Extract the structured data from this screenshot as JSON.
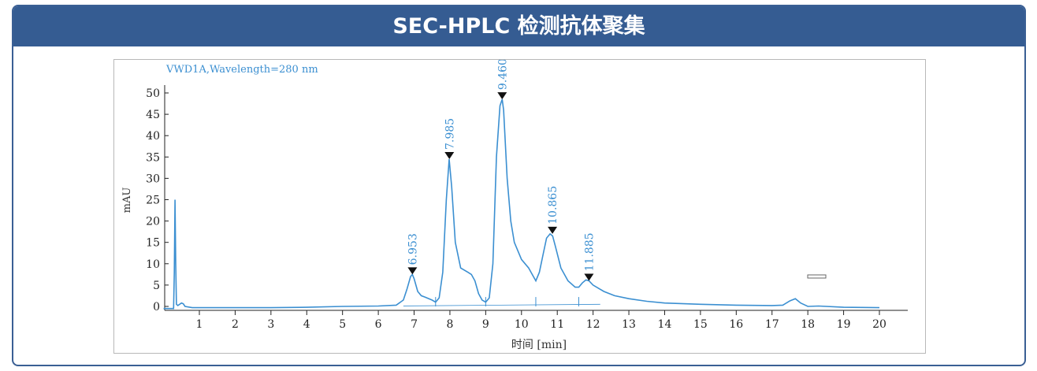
{
  "header": {
    "title": "SEC-HPLC 检测抗体聚集"
  },
  "chart_data": {
    "type": "line",
    "title": "VWD1A,Wavelength=280 nm",
    "xlabel": "时间 [min]",
    "ylabel": "mAU",
    "xlim": [
      0,
      20
    ],
    "ylim": [
      0,
      50
    ],
    "xticks": [
      1,
      2,
      3,
      4,
      5,
      6,
      7,
      8,
      9,
      10,
      11,
      12,
      13,
      14,
      15,
      16,
      17,
      18,
      19,
      20
    ],
    "yticks": [
      0,
      5,
      10,
      15,
      20,
      25,
      30,
      35,
      40,
      45,
      50
    ],
    "peaks": [
      {
        "label": "6.953",
        "x": 6.953,
        "y": 7.5
      },
      {
        "label": "7.985",
        "x": 7.985,
        "y": 34.5
      },
      {
        "label": "9.460",
        "x": 9.46,
        "y": 48.5
      },
      {
        "label": "10.865",
        "x": 10.865,
        "y": 17
      },
      {
        "label": "11.885",
        "x": 11.885,
        "y": 6
      }
    ],
    "integration_baseline_drops": [
      7.6,
      9.0,
      10.4,
      11.6
    ],
    "series": [
      {
        "x": [
          0,
          0.28,
          0.3,
          0.32,
          0.34,
          0.36,
          0.4,
          0.5,
          0.55,
          0.6,
          0.8,
          1,
          2,
          3,
          4,
          5,
          6,
          6.5,
          6.7,
          6.8,
          6.9,
          6.95,
          7,
          7.1,
          7.2,
          7.3,
          7.5,
          7.6,
          7.7,
          7.8,
          7.9,
          7.98,
          8.05,
          8.15,
          8.3,
          8.5,
          8.6,
          8.7,
          8.8,
          8.9,
          9,
          9.1,
          9.2,
          9.3,
          9.4,
          9.46,
          9.5,
          9.6,
          9.7,
          9.8,
          10,
          10.2,
          10.3,
          10.4,
          10.5,
          10.6,
          10.7,
          10.8,
          10.87,
          10.95,
          11.1,
          11.3,
          11.5,
          11.6,
          11.7,
          11.8,
          11.885,
          12,
          12.3,
          12.6,
          13,
          13.5,
          14,
          15,
          16,
          17,
          17.3,
          17.5,
          17.65,
          17.8,
          18,
          18.3,
          19,
          20
        ],
        "y": [
          -0.5,
          -0.5,
          8,
          25,
          10,
          0.5,
          0.2,
          0.8,
          0.6,
          0,
          -0.3,
          -0.3,
          -0.3,
          -0.3,
          -0.2,
          0,
          0.1,
          0.3,
          1.5,
          4,
          7,
          7.5,
          6.5,
          3.5,
          2.5,
          2.2,
          1.5,
          1,
          2,
          8,
          25,
          34.5,
          28,
          15,
          9,
          8,
          7.5,
          6,
          3,
          1.5,
          1,
          2,
          10,
          35,
          47,
          48.5,
          46,
          30,
          20,
          15,
          11,
          9,
          7.5,
          6,
          8,
          12,
          16,
          17,
          16.5,
          14,
          9,
          6,
          4.5,
          4.5,
          5.5,
          6.2,
          6,
          5,
          3.5,
          2.5,
          1.8,
          1.2,
          0.8,
          0.5,
          0.3,
          0.2,
          0.3,
          1.3,
          1.8,
          0.8,
          0,
          0.1,
          -0.2,
          -0.3
        ]
      }
    ],
    "legend_rectangle": true
  }
}
